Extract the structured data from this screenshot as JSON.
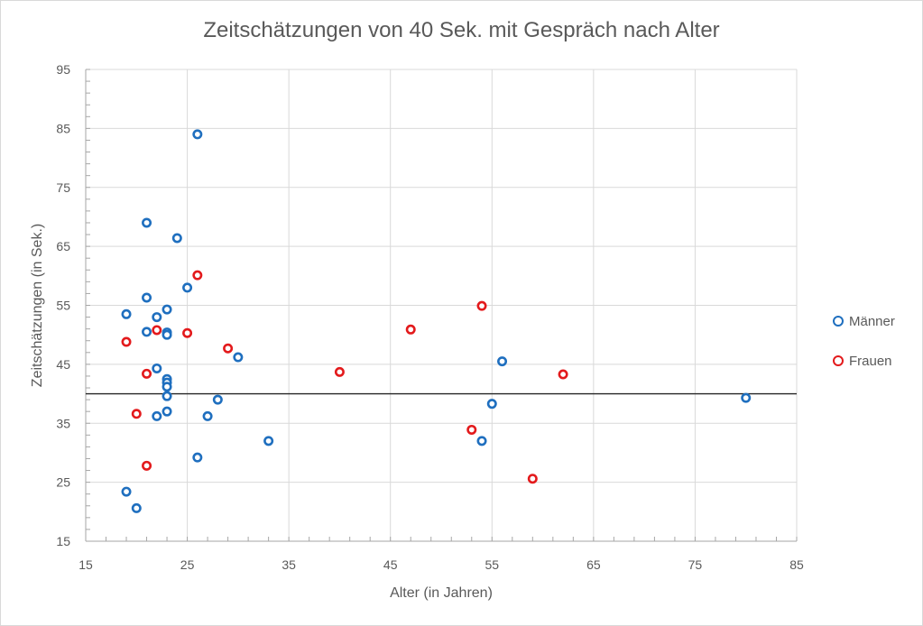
{
  "chart_data": {
    "type": "scatter",
    "title": "Zeitschätzungen von 40 Sek. mit Gespräch nach Alter",
    "xlabel": "Alter (in Jahren)",
    "ylabel": "Zeitschätzungen (in Sek.)",
    "xlim": [
      15,
      85
    ],
    "ylim": [
      15,
      95
    ],
    "xticks": [
      15,
      25,
      35,
      45,
      55,
      65,
      75,
      85
    ],
    "yticks": [
      15,
      25,
      35,
      45,
      55,
      65,
      75,
      85,
      95
    ],
    "grid": true,
    "legend_position": "right",
    "reference_line": {
      "y": 40
    },
    "series": [
      {
        "name": "Männer",
        "color": "#1f6fbf",
        "points": [
          [
            26,
            84
          ],
          [
            21,
            69
          ],
          [
            24,
            66.4
          ],
          [
            25,
            58
          ],
          [
            21,
            56.3
          ],
          [
            19,
            53.5
          ],
          [
            22,
            53
          ],
          [
            23,
            54.3
          ],
          [
            21,
            50.5
          ],
          [
            23,
            50.4
          ],
          [
            23,
            50
          ],
          [
            30,
            46.2
          ],
          [
            22,
            44.3
          ],
          [
            23,
            42.5
          ],
          [
            23,
            41.9
          ],
          [
            23,
            41.2
          ],
          [
            23,
            39.6
          ],
          [
            28,
            39
          ],
          [
            23,
            37
          ],
          [
            22,
            36.2
          ],
          [
            27,
            36.2
          ],
          [
            33,
            32
          ],
          [
            26,
            29.2
          ],
          [
            19,
            23.4
          ],
          [
            20,
            20.6
          ],
          [
            56,
            45.5
          ],
          [
            55,
            38.3
          ],
          [
            54,
            32
          ],
          [
            80,
            39.3
          ]
        ]
      },
      {
        "name": "Frauen",
        "color": "#e31a1c",
        "points": [
          [
            26,
            60.1
          ],
          [
            22,
            50.8
          ],
          [
            25,
            50.3
          ],
          [
            19,
            48.8
          ],
          [
            29,
            47.7
          ],
          [
            21,
            43.4
          ],
          [
            20,
            36.6
          ],
          [
            21,
            27.8
          ],
          [
            40,
            43.7
          ],
          [
            47,
            50.9
          ],
          [
            54,
            54.9
          ],
          [
            53,
            33.9
          ],
          [
            59,
            25.6
          ],
          [
            62,
            43.3
          ]
        ]
      }
    ]
  }
}
